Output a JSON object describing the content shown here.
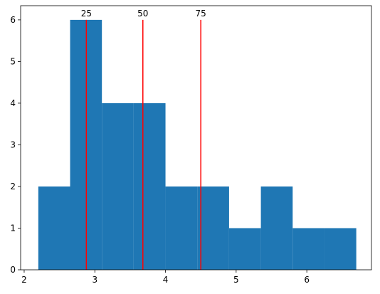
{
  "chart_data": {
    "type": "histogram",
    "bins": [
      2.2,
      2.65,
      3.1,
      3.55,
      4.0,
      4.45,
      4.9,
      5.35,
      5.8,
      6.25,
      6.7
    ],
    "counts": [
      2,
      6,
      4,
      4,
      2,
      2,
      1,
      2,
      1,
      1
    ],
    "color": "#1f77b4",
    "xlim": [
      1.95,
      6.915
    ],
    "xticks": [
      2,
      3,
      4,
      5,
      6
    ],
    "ylim": [
      0,
      6.34
    ],
    "yticks": [
      0,
      1,
      2,
      3,
      4,
      5,
      6
    ],
    "vlines": {
      "x": [
        2.88,
        3.68,
        4.5
      ],
      "labels": [
        "25",
        "50",
        "75"
      ],
      "ymin": 0,
      "ymax": 6,
      "color": "#ff0000"
    }
  }
}
